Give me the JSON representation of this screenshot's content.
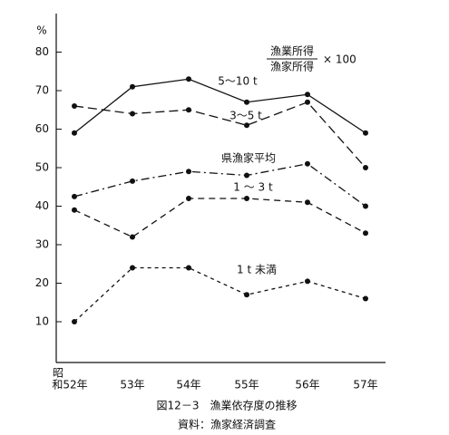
{
  "chart_data": {
    "type": "line",
    "title": "図12－3　漁業依存度の推移",
    "source": "資料：漁家経済調査",
    "y_unit": "%",
    "formula": {
      "numerator": "漁業所得",
      "denominator": "漁家所得",
      "factor": "× 100"
    },
    "x_label_prefix": "昭",
    "categories": [
      "和52年",
      "53年",
      "54年",
      "55年",
      "56年",
      "57年"
    ],
    "ylim": [
      0,
      90
    ],
    "yticks": [
      10,
      20,
      30,
      40,
      50,
      60,
      70,
      80
    ],
    "series": [
      {
        "name": "5～10 t",
        "color": "#111111",
        "style": "solid",
        "values": [
          59,
          71,
          73,
          67,
          69,
          59
        ]
      },
      {
        "name": "3～5 t",
        "color": "#111111",
        "style": "long-dash",
        "values": [
          66,
          64,
          65,
          61,
          67,
          50
        ]
      },
      {
        "name": "県漁家平均",
        "color": "#111111",
        "style": "dash-dot",
        "values": [
          42.5,
          46.5,
          49,
          48,
          51,
          40
        ]
      },
      {
        "name": "1 ～ 3 t",
        "color": "#111111",
        "style": "dashed",
        "values": [
          39,
          32,
          42,
          42,
          41,
          33
        ]
      },
      {
        "name": "1 t 未満",
        "color": "#111111",
        "style": "short-dash",
        "values": [
          10,
          24,
          24,
          17,
          20.5,
          16
        ]
      }
    ]
  }
}
